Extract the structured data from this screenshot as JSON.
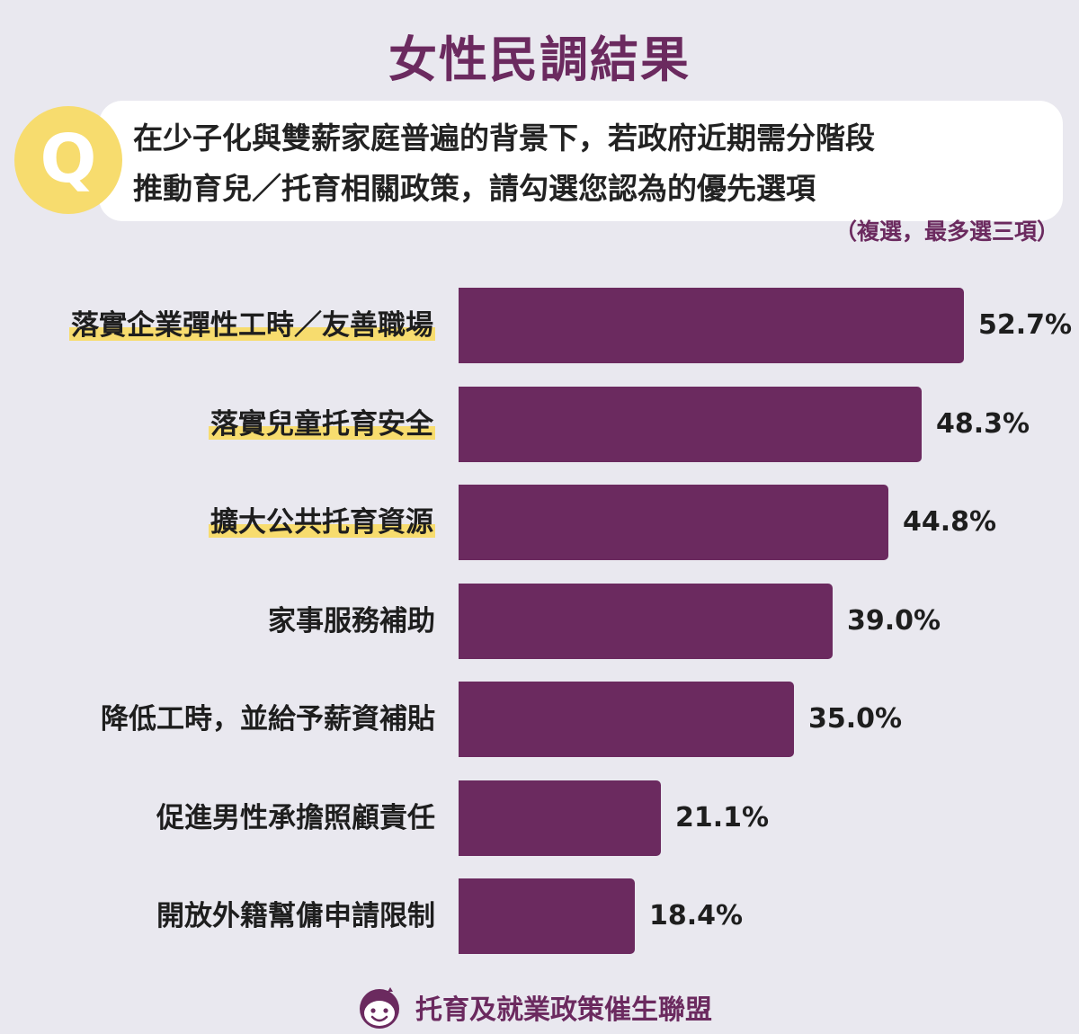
{
  "title": "女性民調結果",
  "question": {
    "badge": "Q",
    "line1": "在少子化與雙薪家庭普遍的背景下，若政府近期需分階段",
    "line2": "推動育兒／托育相關政策，請勾選您認為的優先選項",
    "note": "（複選，最多選三項）"
  },
  "chart_data": {
    "type": "bar",
    "orientation": "horizontal",
    "categories": [
      "落實企業彈性工時／友善職場",
      "落實兒童托育安全",
      "擴大公共托育資源",
      "家事服務補助",
      "降低工時，並給予薪資補貼",
      "促進男性承擔照顧責任",
      "開放外籍幫傭申請限制"
    ],
    "values": [
      52.7,
      48.3,
      44.8,
      39.0,
      35.0,
      21.1,
      18.4
    ],
    "value_labels": [
      "52.7%",
      "48.3%",
      "44.8%",
      "39.0%",
      "35.0%",
      "21.1%",
      "18.4%"
    ],
    "highlighted": [
      true,
      true,
      true,
      false,
      false,
      false,
      false
    ],
    "bar_color": "#6b2a5f",
    "highlight_color": "#f7dc6e",
    "xlim": [
      0,
      52.7
    ],
    "grid": false,
    "legend": "none"
  },
  "footer": {
    "org": "托育及就業政策催生聯盟",
    "icon": "smiling-face-logo-icon"
  },
  "colors": {
    "accent": "#6b2a5f",
    "yellow": "#f7dc6e",
    "background": "#e9e8ef"
  }
}
